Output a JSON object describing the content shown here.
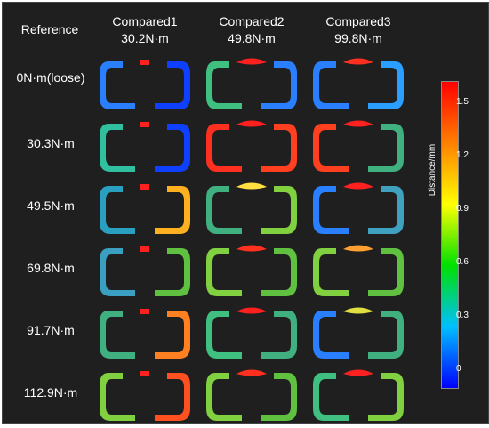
{
  "header": {
    "reference": "Reference",
    "columns": [
      {
        "name": "Compared1",
        "value": "30.2N·m"
      },
      {
        "name": "Compared2",
        "value": "49.8N·m"
      },
      {
        "name": "Compared3",
        "value": "99.8N·m"
      }
    ]
  },
  "rows": [
    {
      "label": "0N·m(loose)"
    },
    {
      "label": "30.3N·m"
    },
    {
      "label": "49.5N·m"
    },
    {
      "label": "69.8N·m"
    },
    {
      "label": "91.7N·m"
    },
    {
      "label": "112.9N·m"
    }
  ],
  "colorbar": {
    "label": "Distance/mm",
    "ticks": [
      "1.5",
      "1.2",
      "0.9",
      "0.6",
      "0.3",
      "0"
    ],
    "colors": [
      "#ff0000",
      "#ff8000",
      "#ffff00",
      "#00e000",
      "#00c0ff",
      "#0000ff"
    ]
  },
  "cells": [
    [
      {
        "left": "#2a7fff",
        "right": "#1040ff",
        "middle": "#ff2020",
        "middleSmall": true
      },
      {
        "left": "#30c0a0",
        "right": "#1040ff",
        "middle": "#ff2020",
        "middleSmall": true
      },
      {
        "left": "#2aa0c0",
        "right": "#ffb020",
        "middle": "#ff2020",
        "middleSmall": true
      },
      {
        "left": "#3a9fc0",
        "right": "#60c040",
        "middle": "#ff2020",
        "middleSmall": true
      },
      {
        "left": "#40b080",
        "right": "#ff8020",
        "middle": "#ff2020",
        "middleSmall": true
      },
      {
        "left": "#80d040",
        "right": "#ff5020",
        "middle": "#ff2020",
        "middleSmall": true
      }
    ],
    [
      {
        "left": "#40c080",
        "right": "#2a7fff",
        "middle": "#ff2020",
        "middleSmall": false
      },
      {
        "left": "#ff3020",
        "right": "#ff4020",
        "middle": "#ff2020",
        "middleSmall": false
      },
      {
        "left": "#40b080",
        "right": "#80d040",
        "middle": "#ffe040",
        "middleSmall": false
      },
      {
        "left": "#80d040",
        "right": "#60c040",
        "middle": "#ff3020",
        "middleSmall": false
      },
      {
        "left": "#40c080",
        "right": "#40b080",
        "middle": "#ff2020",
        "middleSmall": false
      },
      {
        "left": "#80d040",
        "right": "#60c040",
        "middle": "#ff3020",
        "middleSmall": false
      }
    ],
    [
      {
        "left": "#2a7fff",
        "right": "#2a9fff",
        "middle": "#ff3020",
        "middleSmall": false
      },
      {
        "left": "#ff4020",
        "right": "#40b080",
        "middle": "#ff2020",
        "middleSmall": false
      },
      {
        "left": "#2a7fff",
        "right": "#40a0c0",
        "middle": "#ff2020",
        "middleSmall": false
      },
      {
        "left": "#80d040",
        "right": "#60c040",
        "middle": "#ffa030",
        "middleSmall": false
      },
      {
        "left": "#2a7fff",
        "right": "#40b080",
        "middle": "#e0e040",
        "middleSmall": false
      },
      {
        "left": "#40c080",
        "right": "#80d040",
        "middle": "#ff2020",
        "middleSmall": false
      }
    ]
  ]
}
